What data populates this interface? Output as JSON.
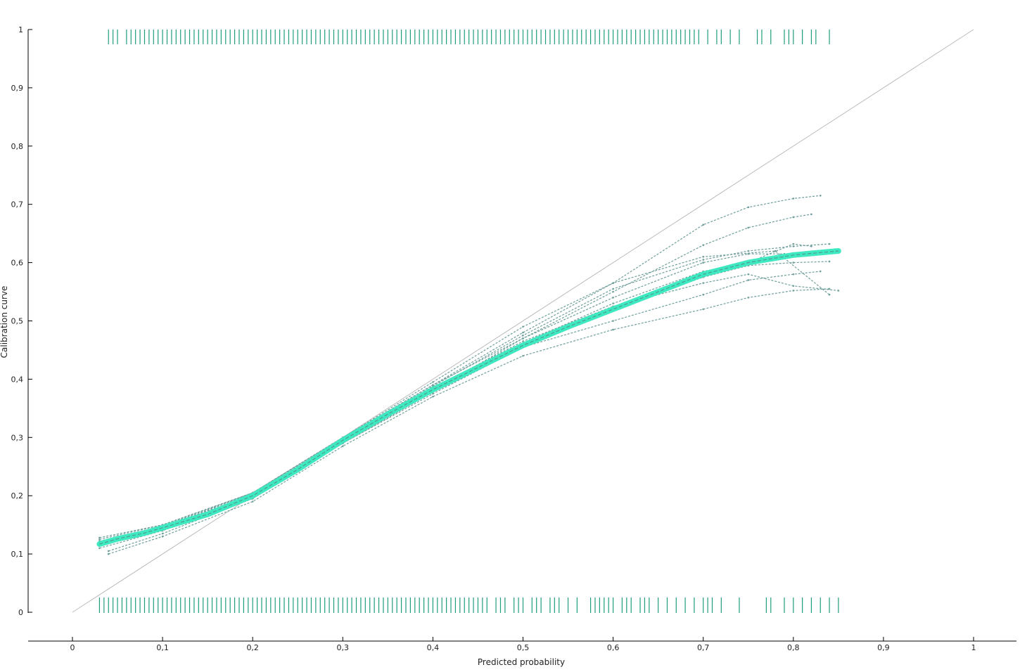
{
  "chart_data": {
    "type": "line",
    "title": "",
    "xlabel": "Predicted probability",
    "ylabel": "Calibration curve",
    "xlim": [
      0,
      1
    ],
    "ylim": [
      0,
      1
    ],
    "x_ticks": [
      "0",
      "0,1",
      "0,2",
      "0,3",
      "0,4",
      "0,5",
      "0,6",
      "0,7",
      "0,8",
      "0,9",
      "1"
    ],
    "y_ticks": [
      "0",
      "0,1",
      "0,2",
      "0,3",
      "0,4",
      "0,5",
      "0,6",
      "0,7",
      "0,8",
      "0,9",
      "1"
    ],
    "grid": false,
    "legend": "none",
    "reference_line": {
      "x": [
        0,
        1
      ],
      "y": [
        0,
        1
      ],
      "color": "#bbbbbb"
    },
    "colors": {
      "mean_curve": "#3ee8c0",
      "mean_curve_dash": "#4f9a8e",
      "bootstrap_curves": "#6f9f9c",
      "rug": "#1f9e7e"
    },
    "mean_curve": {
      "x": [
        0.03,
        0.05,
        0.08,
        0.1,
        0.15,
        0.2,
        0.25,
        0.3,
        0.35,
        0.4,
        0.45,
        0.5,
        0.55,
        0.6,
        0.65,
        0.7,
        0.75,
        0.8,
        0.85
      ],
      "y": [
        0.117,
        0.126,
        0.136,
        0.145,
        0.168,
        0.2,
        0.245,
        0.295,
        0.34,
        0.382,
        0.42,
        0.458,
        0.49,
        0.52,
        0.55,
        0.58,
        0.6,
        0.613,
        0.62
      ]
    },
    "bootstrap_curves": [
      {
        "x": [
          0.03,
          0.1,
          0.2,
          0.3,
          0.4,
          0.5,
          0.6,
          0.7,
          0.75,
          0.8,
          0.83
        ],
        "y": [
          0.125,
          0.15,
          0.205,
          0.3,
          0.39,
          0.48,
          0.565,
          0.665,
          0.695,
          0.71,
          0.715
        ]
      },
      {
        "x": [
          0.03,
          0.1,
          0.2,
          0.3,
          0.4,
          0.5,
          0.6,
          0.7,
          0.75,
          0.8,
          0.82
        ],
        "y": [
          0.12,
          0.148,
          0.2,
          0.295,
          0.38,
          0.47,
          0.55,
          0.63,
          0.66,
          0.678,
          0.683
        ]
      },
      {
        "x": [
          0.03,
          0.1,
          0.2,
          0.3,
          0.4,
          0.5,
          0.6,
          0.7,
          0.75,
          0.8,
          0.84
        ],
        "y": [
          0.11,
          0.14,
          0.195,
          0.29,
          0.375,
          0.455,
          0.52,
          0.575,
          0.595,
          0.6,
          0.602
        ]
      },
      {
        "x": [
          0.04,
          0.1,
          0.2,
          0.3,
          0.4,
          0.5,
          0.6,
          0.7,
          0.75,
          0.8,
          0.84
        ],
        "y": [
          0.1,
          0.13,
          0.19,
          0.285,
          0.37,
          0.44,
          0.485,
          0.52,
          0.54,
          0.552,
          0.555
        ]
      },
      {
        "x": [
          0.04,
          0.1,
          0.2,
          0.3,
          0.4,
          0.5,
          0.6,
          0.7,
          0.75,
          0.8,
          0.83
        ],
        "y": [
          0.105,
          0.135,
          0.195,
          0.29,
          0.38,
          0.455,
          0.5,
          0.545,
          0.57,
          0.58,
          0.585
        ]
      },
      {
        "x": [
          0.03,
          0.1,
          0.2,
          0.3,
          0.4,
          0.5,
          0.6,
          0.7,
          0.78,
          0.84
        ],
        "y": [
          0.12,
          0.145,
          0.205,
          0.3,
          0.395,
          0.49,
          0.565,
          0.61,
          0.62,
          0.545
        ]
      },
      {
        "x": [
          0.03,
          0.1,
          0.2,
          0.3,
          0.4,
          0.5,
          0.6,
          0.7,
          0.75,
          0.8,
          0.85
        ],
        "y": [
          0.118,
          0.145,
          0.2,
          0.295,
          0.385,
          0.465,
          0.525,
          0.565,
          0.58,
          0.56,
          0.552
        ]
      },
      {
        "x": [
          0.03,
          0.1,
          0.2,
          0.3,
          0.4,
          0.5,
          0.6,
          0.7,
          0.75,
          0.79
        ],
        "y": [
          0.122,
          0.148,
          0.205,
          0.3,
          0.39,
          0.47,
          0.54,
          0.6,
          0.615,
          0.615
        ]
      },
      {
        "x": [
          0.03,
          0.1,
          0.2,
          0.3,
          0.4,
          0.5,
          0.6,
          0.7,
          0.75,
          0.8,
          0.82
        ],
        "y": [
          0.115,
          0.142,
          0.198,
          0.29,
          0.378,
          0.462,
          0.53,
          0.585,
          0.6,
          0.632,
          0.628
        ]
      },
      {
        "x": [
          0.03,
          0.1,
          0.2,
          0.3,
          0.4,
          0.5,
          0.6,
          0.7,
          0.75,
          0.8,
          0.84
        ],
        "y": [
          0.128,
          0.15,
          0.205,
          0.297,
          0.388,
          0.475,
          0.555,
          0.605,
          0.62,
          0.628,
          0.632
        ]
      }
    ],
    "rug_positive": {
      "y": 1,
      "x": [
        0.04,
        0.045,
        0.05,
        0.06,
        0.065,
        0.07,
        0.075,
        0.08,
        0.085,
        0.09,
        0.095,
        0.1,
        0.105,
        0.11,
        0.115,
        0.12,
        0.125,
        0.13,
        0.135,
        0.14,
        0.145,
        0.15,
        0.155,
        0.16,
        0.165,
        0.17,
        0.175,
        0.18,
        0.185,
        0.19,
        0.195,
        0.2,
        0.205,
        0.21,
        0.215,
        0.22,
        0.225,
        0.23,
        0.235,
        0.24,
        0.245,
        0.25,
        0.255,
        0.26,
        0.265,
        0.27,
        0.275,
        0.28,
        0.285,
        0.29,
        0.295,
        0.3,
        0.305,
        0.31,
        0.315,
        0.32,
        0.325,
        0.33,
        0.335,
        0.34,
        0.345,
        0.35,
        0.355,
        0.36,
        0.365,
        0.37,
        0.375,
        0.38,
        0.385,
        0.39,
        0.395,
        0.4,
        0.405,
        0.41,
        0.415,
        0.42,
        0.425,
        0.43,
        0.435,
        0.44,
        0.445,
        0.45,
        0.455,
        0.46,
        0.465,
        0.47,
        0.475,
        0.48,
        0.485,
        0.49,
        0.495,
        0.5,
        0.505,
        0.51,
        0.515,
        0.52,
        0.525,
        0.53,
        0.535,
        0.54,
        0.545,
        0.55,
        0.555,
        0.56,
        0.565,
        0.57,
        0.575,
        0.58,
        0.585,
        0.59,
        0.595,
        0.6,
        0.605,
        0.61,
        0.615,
        0.62,
        0.625,
        0.63,
        0.635,
        0.64,
        0.645,
        0.65,
        0.655,
        0.66,
        0.665,
        0.67,
        0.675,
        0.68,
        0.685,
        0.69,
        0.695,
        0.705,
        0.715,
        0.72,
        0.73,
        0.74,
        0.76,
        0.765,
        0.775,
        0.79,
        0.795,
        0.8,
        0.81,
        0.82,
        0.825,
        0.84
      ]
    },
    "rug_negative": {
      "y": 0,
      "x": [
        0.03,
        0.035,
        0.04,
        0.045,
        0.05,
        0.055,
        0.06,
        0.065,
        0.07,
        0.075,
        0.08,
        0.085,
        0.09,
        0.095,
        0.1,
        0.105,
        0.11,
        0.115,
        0.12,
        0.125,
        0.13,
        0.135,
        0.14,
        0.145,
        0.15,
        0.155,
        0.16,
        0.165,
        0.17,
        0.175,
        0.18,
        0.185,
        0.19,
        0.195,
        0.2,
        0.205,
        0.21,
        0.215,
        0.22,
        0.225,
        0.23,
        0.235,
        0.24,
        0.245,
        0.25,
        0.255,
        0.26,
        0.265,
        0.27,
        0.275,
        0.28,
        0.285,
        0.29,
        0.295,
        0.3,
        0.305,
        0.31,
        0.315,
        0.32,
        0.325,
        0.33,
        0.335,
        0.34,
        0.345,
        0.35,
        0.355,
        0.36,
        0.365,
        0.37,
        0.375,
        0.38,
        0.385,
        0.39,
        0.395,
        0.4,
        0.405,
        0.41,
        0.415,
        0.42,
        0.425,
        0.43,
        0.435,
        0.44,
        0.445,
        0.45,
        0.455,
        0.46,
        0.47,
        0.475,
        0.48,
        0.49,
        0.495,
        0.5,
        0.51,
        0.515,
        0.52,
        0.53,
        0.535,
        0.54,
        0.55,
        0.56,
        0.575,
        0.58,
        0.585,
        0.59,
        0.595,
        0.6,
        0.61,
        0.615,
        0.62,
        0.63,
        0.635,
        0.64,
        0.65,
        0.66,
        0.67,
        0.68,
        0.69,
        0.7,
        0.705,
        0.71,
        0.72,
        0.74,
        0.77,
        0.775,
        0.79,
        0.8,
        0.81,
        0.82,
        0.83,
        0.84,
        0.85
      ]
    }
  }
}
